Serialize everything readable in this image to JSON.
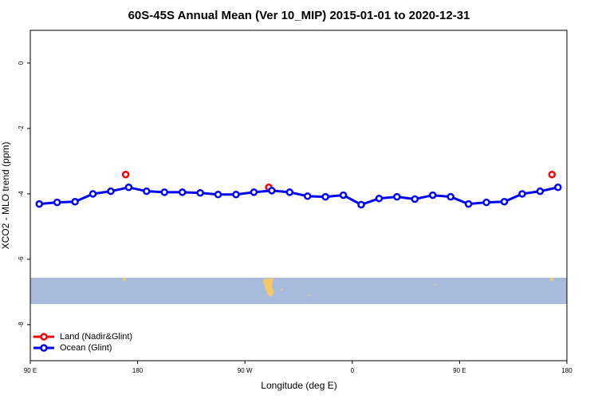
{
  "chart_data": {
    "type": "line",
    "title": "60S-45S Annual Mean (Ver 10_MIP)   2015-01-01 to 2020-12-31",
    "x_label": "Longitude (deg E)",
    "y_label": "XCO2 - MLO trend (ppm)",
    "xlim": [
      90,
      540
    ],
    "xticks": [
      {
        "value": 90,
        "label": "90 E"
      },
      180,
      {
        "value": 270,
        "label": "90 W"
      },
      {
        "value": 360,
        "label": "0"
      },
      {
        "value": 450,
        "label": "90 E"
      },
      {
        "value": 540,
        "label": "180"
      }
    ],
    "ylim": [
      -9.1,
      1
    ],
    "yticks": [
      0,
      -2,
      -4,
      -6,
      -8
    ],
    "legend": "bottom-left",
    "series": [
      {
        "name": "Land (Nadir&Glint)",
        "color": "#ff0000",
        "line": false,
        "x": [
          170,
          290,
          527.5
        ],
        "values": [
          -3.41,
          -3.8,
          -3.41
        ]
      },
      {
        "name": "Ocean (Glint)",
        "color": "#0000ff",
        "line": true,
        "x": [
          97.5,
          112.5,
          127.5,
          142.5,
          157.5,
          172.5,
          187.5,
          202.5,
          217.5,
          232.5,
          247.5,
          262.5,
          277.5,
          292.5,
          307.5,
          322.5,
          337.5,
          352.5,
          367.5,
          382.5,
          397.5,
          412.5,
          427.5,
          442.5,
          457.5,
          472.5,
          487.5,
          502.5,
          517.5,
          532.5
        ],
        "values": [
          -4.31,
          -4.26,
          -4.24,
          -4.0,
          -3.92,
          -3.8,
          -3.92,
          -3.95,
          -3.95,
          -3.97,
          -4.02,
          -4.02,
          -3.95,
          -3.9,
          -3.95,
          -4.07,
          -4.09,
          -4.04,
          -4.33,
          -4.14,
          -4.09,
          -4.16,
          -4.04,
          -4.09,
          -4.31,
          -4.26,
          -4.24,
          -4.0,
          -3.92,
          -3.8
        ]
      }
    ]
  }
}
